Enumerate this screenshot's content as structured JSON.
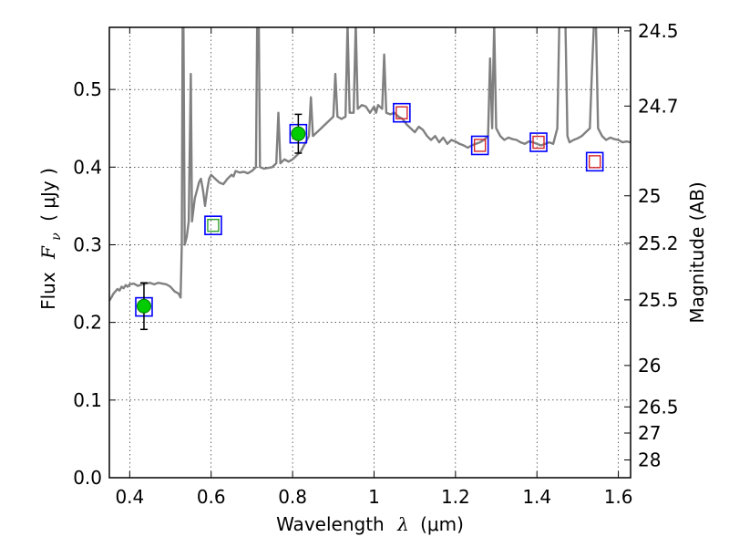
{
  "chart_data": {
    "type": "line",
    "xlabel_prefix": "Wavelength",
    "xlabel_symbol": "λ",
    "xlabel_unit": "(μm)",
    "ylabel_prefix": "Flux",
    "ylabel_symbol": "F",
    "ylabel_subscript": "ν",
    "ylabel_unit": "( μJy )",
    "y2label": "Magnitude (AB)",
    "xlim": [
      0.35,
      1.63
    ],
    "ylim": [
      0.0,
      0.58
    ],
    "grid": true,
    "x_ticks": [
      {
        "value": 0.4,
        "label": "0.4"
      },
      {
        "value": 0.6,
        "label": "0.6"
      },
      {
        "value": 0.8,
        "label": "0.8"
      },
      {
        "value": 1.0,
        "label": "1"
      },
      {
        "value": 1.2,
        "label": "1.2"
      },
      {
        "value": 1.4,
        "label": "1.4"
      },
      {
        "value": 1.6,
        "label": "1.6"
      }
    ],
    "y_ticks": [
      {
        "value": 0.0,
        "label": "0.0"
      },
      {
        "value": 0.1,
        "label": "0.1"
      },
      {
        "value": 0.2,
        "label": "0.2"
      },
      {
        "value": 0.3,
        "label": "0.3"
      },
      {
        "value": 0.4,
        "label": "0.4"
      },
      {
        "value": 0.5,
        "label": "0.5"
      }
    ],
    "y2_ticks": [
      {
        "value": 24.5,
        "label": "24.5"
      },
      {
        "value": 24.7,
        "label": "24.7"
      },
      {
        "value": 25.0,
        "label": "25"
      },
      {
        "value": 25.2,
        "label": "25.2"
      },
      {
        "value": 25.5,
        "label": "25.5"
      },
      {
        "value": 26.0,
        "label": "26"
      },
      {
        "value": 26.5,
        "label": "26.5"
      },
      {
        "value": 27.0,
        "label": "27"
      },
      {
        "value": 28.0,
        "label": "28"
      }
    ],
    "model_spectrum": {
      "color": "#808080",
      "points": [
        [
          0.35,
          0.228
        ],
        [
          0.355,
          0.232
        ],
        [
          0.36,
          0.237
        ],
        [
          0.365,
          0.24
        ],
        [
          0.37,
          0.243
        ],
        [
          0.375,
          0.241
        ],
        [
          0.38,
          0.246
        ],
        [
          0.385,
          0.244
        ],
        [
          0.39,
          0.248
        ],
        [
          0.395,
          0.246
        ],
        [
          0.4,
          0.249
        ],
        [
          0.41,
          0.25
        ],
        [
          0.42,
          0.247
        ],
        [
          0.43,
          0.249
        ],
        [
          0.44,
          0.25
        ],
        [
          0.45,
          0.251
        ],
        [
          0.46,
          0.249
        ],
        [
          0.47,
          0.251
        ],
        [
          0.48,
          0.25
        ],
        [
          0.49,
          0.249
        ],
        [
          0.5,
          0.246
        ],
        [
          0.51,
          0.24
        ],
        [
          0.52,
          0.237
        ],
        [
          0.525,
          0.232
        ],
        [
          0.528,
          0.3
        ],
        [
          0.53,
          0.585
        ],
        [
          0.532,
          0.585
        ],
        [
          0.535,
          0.3
        ],
        [
          0.54,
          0.31
        ],
        [
          0.545,
          0.33
        ],
        [
          0.55,
          0.52
        ],
        [
          0.553,
          0.33
        ],
        [
          0.56,
          0.36
        ],
        [
          0.565,
          0.37
        ],
        [
          0.57,
          0.38
        ],
        [
          0.575,
          0.385
        ],
        [
          0.58,
          0.37
        ],
        [
          0.585,
          0.35
        ],
        [
          0.59,
          0.37
        ],
        [
          0.595,
          0.385
        ],
        [
          0.6,
          0.39
        ],
        [
          0.61,
          0.385
        ],
        [
          0.62,
          0.38
        ],
        [
          0.63,
          0.378
        ],
        [
          0.64,
          0.385
        ],
        [
          0.65,
          0.39
        ],
        [
          0.655,
          0.388
        ],
        [
          0.66,
          0.395
        ],
        [
          0.67,
          0.393
        ],
        [
          0.68,
          0.394
        ],
        [
          0.69,
          0.392
        ],
        [
          0.7,
          0.395
        ],
        [
          0.71,
          0.4
        ],
        [
          0.713,
          0.585
        ],
        [
          0.717,
          0.585
        ],
        [
          0.72,
          0.4
        ],
        [
          0.73,
          0.398
        ],
        [
          0.74,
          0.399
        ],
        [
          0.75,
          0.4
        ],
        [
          0.76,
          0.405
        ],
        [
          0.765,
          0.47
        ],
        [
          0.77,
          0.405
        ],
        [
          0.78,
          0.41
        ],
        [
          0.79,
          0.407
        ],
        [
          0.8,
          0.41
        ],
        [
          0.81,
          0.415
        ],
        [
          0.82,
          0.42
        ],
        [
          0.825,
          0.425
        ],
        [
          0.83,
          0.43
        ],
        [
          0.84,
          0.44
        ],
        [
          0.845,
          0.49
        ],
        [
          0.85,
          0.44
        ],
        [
          0.86,
          0.445
        ],
        [
          0.87,
          0.45
        ],
        [
          0.88,
          0.455
        ],
        [
          0.89,
          0.46
        ],
        [
          0.9,
          0.465
        ],
        [
          0.905,
          0.52
        ],
        [
          0.91,
          0.465
        ],
        [
          0.92,
          0.462
        ],
        [
          0.93,
          0.465
        ],
        [
          0.935,
          0.585
        ],
        [
          0.94,
          0.47
        ],
        [
          0.95,
          0.47
        ],
        [
          0.955,
          0.585
        ],
        [
          0.96,
          0.475
        ],
        [
          0.97,
          0.48
        ],
        [
          0.98,
          0.478
        ],
        [
          0.99,
          0.47
        ],
        [
          1.0,
          0.478
        ],
        [
          1.005,
          0.47
        ],
        [
          1.01,
          0.48
        ],
        [
          1.02,
          0.475
        ],
        [
          1.025,
          0.545
        ],
        [
          1.03,
          0.47
        ],
        [
          1.04,
          0.468
        ],
        [
          1.05,
          0.47
        ],
        [
          1.06,
          0.465
        ],
        [
          1.07,
          0.462
        ],
        [
          1.08,
          0.455
        ],
        [
          1.09,
          0.45
        ],
        [
          1.1,
          0.445
        ],
        [
          1.11,
          0.452
        ],
        [
          1.12,
          0.448
        ],
        [
          1.13,
          0.44
        ],
        [
          1.14,
          0.435
        ],
        [
          1.15,
          0.44
        ],
        [
          1.16,
          0.432
        ],
        [
          1.17,
          0.438
        ],
        [
          1.18,
          0.43
        ],
        [
          1.19,
          0.435
        ],
        [
          1.2,
          0.433
        ],
        [
          1.21,
          0.43
        ],
        [
          1.22,
          0.428
        ],
        [
          1.23,
          0.425
        ],
        [
          1.24,
          0.428
        ],
        [
          1.25,
          0.43
        ],
        [
          1.26,
          0.432
        ],
        [
          1.27,
          0.435
        ],
        [
          1.28,
          0.44
        ],
        [
          1.285,
          0.54
        ],
        [
          1.29,
          0.45
        ],
        [
          1.295,
          0.585
        ],
        [
          1.3,
          0.45
        ],
        [
          1.31,
          0.44
        ],
        [
          1.32,
          0.435
        ],
        [
          1.33,
          0.438
        ],
        [
          1.34,
          0.436
        ],
        [
          1.35,
          0.435
        ],
        [
          1.36,
          0.432
        ],
        [
          1.37,
          0.43
        ],
        [
          1.38,
          0.433
        ],
        [
          1.39,
          0.432
        ],
        [
          1.4,
          0.43
        ],
        [
          1.41,
          0.428
        ],
        [
          1.42,
          0.43
        ],
        [
          1.43,
          0.432
        ],
        [
          1.44,
          0.43
        ],
        [
          1.45,
          0.45
        ],
        [
          1.455,
          0.585
        ],
        [
          1.47,
          0.585
        ],
        [
          1.475,
          0.44
        ],
        [
          1.48,
          0.432
        ],
        [
          1.49,
          0.435
        ],
        [
          1.5,
          0.437
        ],
        [
          1.51,
          0.44
        ],
        [
          1.52,
          0.445
        ],
        [
          1.53,
          0.45
        ],
        [
          1.535,
          0.52
        ],
        [
          1.54,
          0.585
        ],
        [
          1.545,
          0.585
        ],
        [
          1.55,
          0.45
        ],
        [
          1.56,
          0.44
        ],
        [
          1.57,
          0.435
        ],
        [
          1.58,
          0.438
        ],
        [
          1.59,
          0.436
        ],
        [
          1.6,
          0.435
        ],
        [
          1.61,
          0.432
        ],
        [
          1.62,
          0.433
        ],
        [
          1.63,
          0.432
        ]
      ]
    },
    "model_photometry": {
      "color": "#0000ff",
      "points": [
        [
          0.435,
          0.22
        ],
        [
          0.605,
          0.325
        ],
        [
          0.814,
          0.443
        ],
        [
          1.068,
          0.47
        ],
        [
          1.26,
          0.428
        ],
        [
          1.404,
          0.432
        ],
        [
          1.542,
          0.407
        ]
      ]
    },
    "upper_limits": {
      "color": "#d62728",
      "points": [
        [
          1.068,
          0.47
        ],
        [
          1.26,
          0.428
        ],
        [
          1.404,
          0.432
        ],
        [
          1.542,
          0.407
        ]
      ]
    },
    "marginal_detections": {
      "color": "#2ca02c",
      "points": [
        [
          0.605,
          0.325
        ]
      ]
    },
    "detections": {
      "color": "#00cc00",
      "points": [
        {
          "x": 0.435,
          "y": 0.221,
          "yerr": 0.03
        },
        {
          "x": 0.814,
          "y": 0.443,
          "yerr": 0.025
        }
      ]
    }
  }
}
